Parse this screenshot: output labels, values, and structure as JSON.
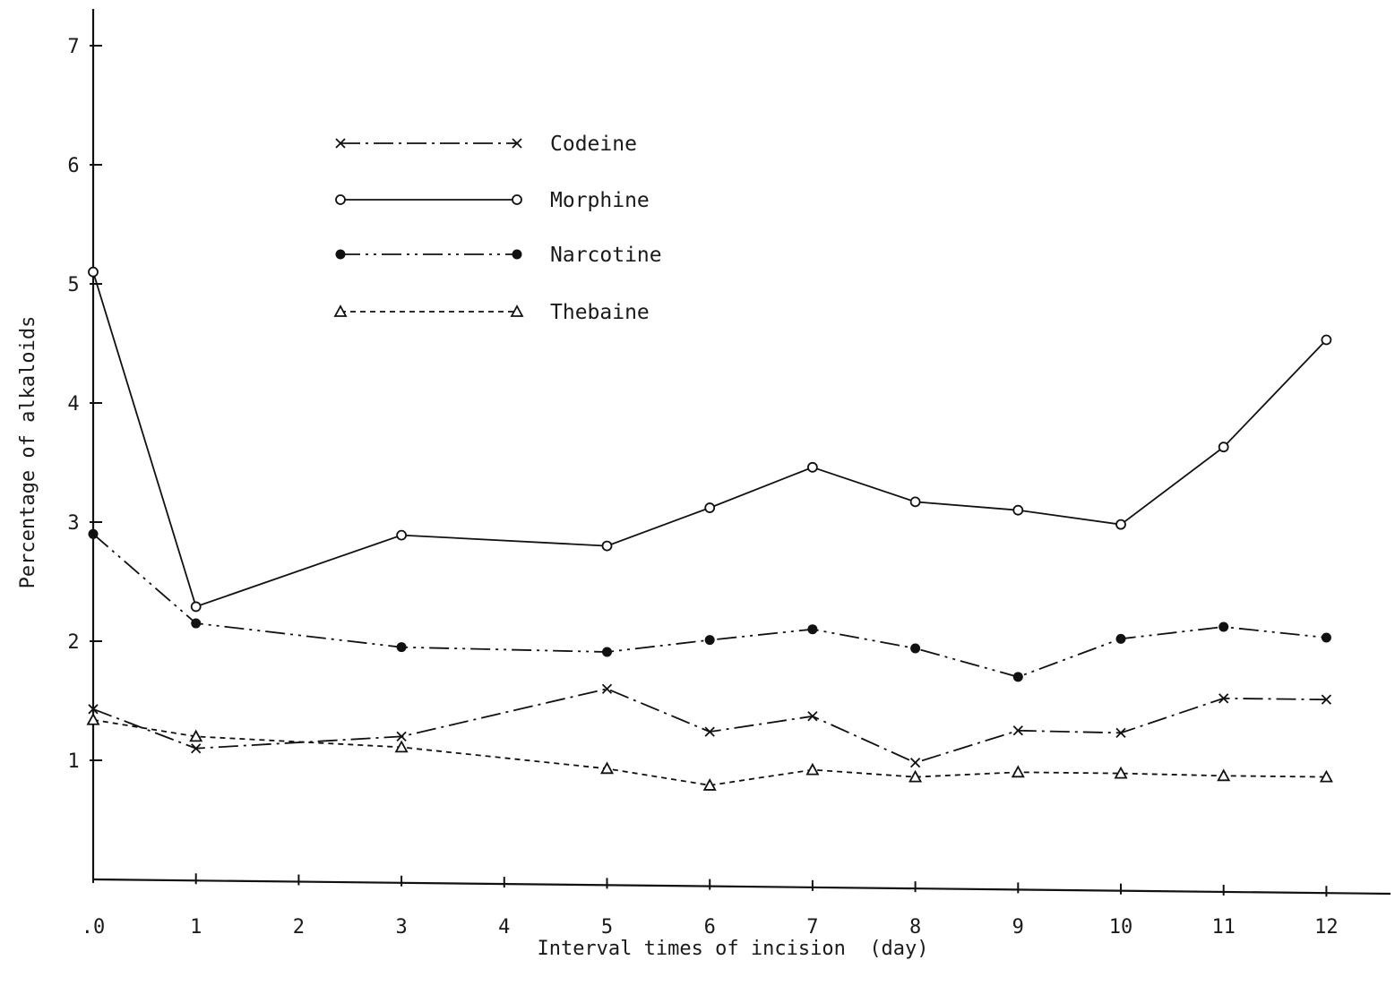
{
  "chart_data": {
    "type": "line",
    "xlabel": "Interval times of incision  (day)",
    "ylabel": "Percentage of alkaloids",
    "x_ticks": [
      ".0",
      "1",
      "2",
      "3",
      "4",
      "5",
      "6",
      "7",
      "8",
      "9",
      "10",
      "11",
      "12"
    ],
    "y_ticks": [
      "1",
      "2",
      "3",
      "4",
      "5",
      "6",
      "7"
    ],
    "xlim": [
      0,
      12
    ],
    "ylim": [
      0,
      7
    ],
    "grid": false,
    "legend_position": "top-left",
    "series": [
      {
        "name": "Codeine",
        "marker": "x",
        "dash": "dash-dot",
        "x": [
          0,
          1,
          3,
          5,
          6,
          7,
          8,
          9,
          10,
          11,
          12
        ],
        "values": [
          1.43,
          1.1,
          1.2,
          1.6,
          1.24,
          1.37,
          0.98,
          1.25,
          1.23,
          1.52,
          1.51
        ]
      },
      {
        "name": "Morphine",
        "marker": "open-circle",
        "dash": "solid",
        "x": [
          0,
          1,
          3,
          5,
          6,
          7,
          8,
          9,
          10,
          11,
          12
        ],
        "values": [
          5.1,
          2.29,
          2.89,
          2.8,
          3.12,
          3.46,
          3.17,
          3.1,
          2.98,
          3.63,
          4.53
        ]
      },
      {
        "name": "Narcotine",
        "marker": "filled-circle",
        "dash": "dash-dot-dot",
        "x": [
          0,
          1,
          3,
          5,
          6,
          7,
          8,
          9,
          10,
          11,
          12
        ],
        "values": [
          2.9,
          2.15,
          1.95,
          1.91,
          2.01,
          2.1,
          1.94,
          1.7,
          2.02,
          2.12,
          2.03
        ]
      },
      {
        "name": "Thebaine",
        "marker": "triangle",
        "dash": "dashed",
        "x": [
          0,
          1,
          3,
          5,
          6,
          7,
          8,
          9,
          10,
          11,
          12
        ],
        "values": [
          1.34,
          1.2,
          1.11,
          0.93,
          0.79,
          0.92,
          0.86,
          0.9,
          0.89,
          0.87,
          0.86
        ]
      }
    ]
  }
}
